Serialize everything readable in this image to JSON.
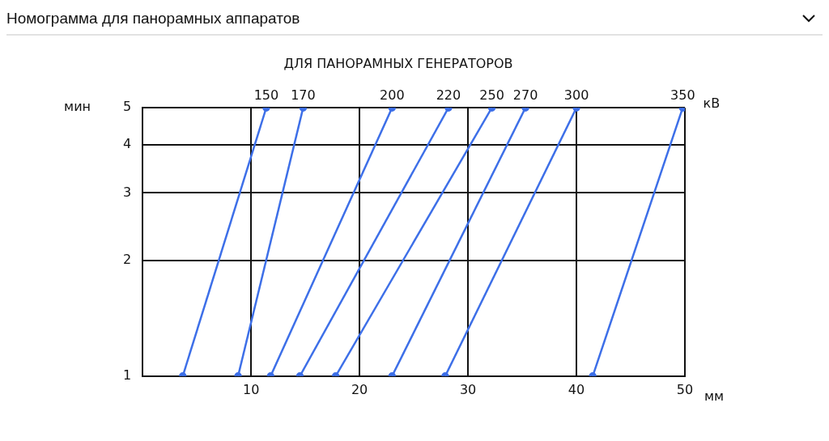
{
  "chart_data": {
    "type": "line",
    "title": "Номограмма для панорамных аппаратов",
    "subtitle": "ДЛЯ ПАНОРАМНЫХ ГЕНЕРАТОРОВ",
    "xlabel": "мм",
    "ylabel": "мин",
    "annotations": [
      "кВ"
    ],
    "series": [
      {
        "name": "150",
        "color": "#3d6fe8",
        "x": [
          3.7,
          11.4
        ],
        "values": [
          1,
          5
        ]
      },
      {
        "name": "170",
        "color": "#3d6fe8",
        "x": [
          8.8,
          14.8
        ],
        "values": [
          1,
          5
        ]
      },
      {
        "name": "200",
        "color": "#3d6fe8",
        "x": [
          11.8,
          23
        ],
        "values": [
          1,
          5
        ]
      },
      {
        "name": "220",
        "color": "#3d6fe8",
        "x": [
          14.5,
          28.2
        ],
        "values": [
          1,
          5
        ]
      },
      {
        "name": "250",
        "color": "#3d6fe8",
        "x": [
          17.8,
          32.2
        ],
        "values": [
          1,
          5
        ]
      },
      {
        "name": "270",
        "color": "#3d6fe8",
        "x": [
          23,
          35.3
        ],
        "values": [
          1,
          5
        ]
      },
      {
        "name": "300",
        "color": "#3d6fe8",
        "x": [
          27.9,
          40
        ],
        "values": [
          1,
          5
        ]
      },
      {
        "name": "350",
        "color": "#3d6fe8",
        "x": [
          41.5,
          49.8
        ],
        "values": [
          1,
          5
        ]
      }
    ],
    "xlim": [
      0,
      50
    ],
    "xticks": [
      10,
      20,
      30,
      40,
      50
    ],
    "ylim": [
      1,
      5
    ],
    "yticks": [
      1,
      2,
      3,
      4,
      5
    ],
    "log": "y",
    "grid": true,
    "legend": false,
    "marker": "circle",
    "line_style": "solid"
  }
}
